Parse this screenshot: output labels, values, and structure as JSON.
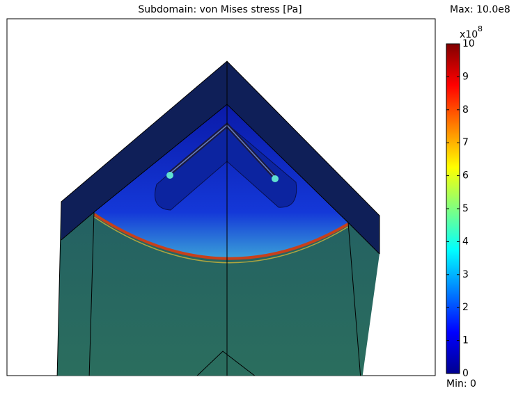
{
  "chart_data": {
    "type": "surface",
    "title": "Subdomain: von Mises stress [Pa]",
    "max_label": "Max: 10.0e8",
    "min_label": "Min: 0",
    "colormap": "jet",
    "colorbar_multiplier": {
      "base": "x10",
      "exponent": "8"
    },
    "clim": [
      0,
      10
    ],
    "cticks": [
      0,
      1,
      2,
      3,
      4,
      5,
      6,
      7,
      8,
      9,
      10
    ]
  }
}
